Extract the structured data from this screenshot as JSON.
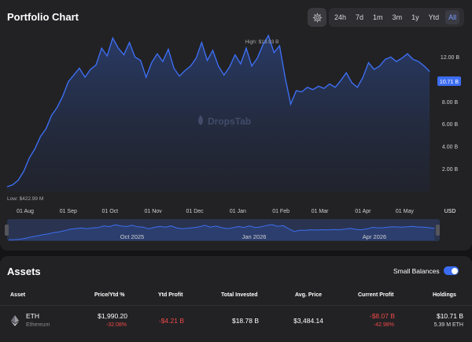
{
  "chart_card": {
    "title": "Portfolio Chart",
    "ranges": [
      {
        "label": "24h",
        "active": false
      },
      {
        "label": "7d",
        "active": false
      },
      {
        "label": "1m",
        "active": false
      },
      {
        "label": "3m",
        "active": false
      },
      {
        "label": "1y",
        "active": false
      },
      {
        "label": "Ytd",
        "active": false
      },
      {
        "label": "All",
        "active": true
      }
    ],
    "watermark": "DropsTab",
    "high_label": "High: $13.93 B",
    "low_label": "Low: $422.99 M",
    "current_badge": "10.71 B",
    "navigator_labels": [
      "Oct 2025",
      "Jan 2026",
      "Apr 2026"
    ],
    "colors": {
      "line": "#3d6ef2",
      "badge": "#3d6ef2",
      "background": "#222224"
    },
    "icons": {
      "settings": "gear-icon"
    }
  },
  "chart_data": {
    "type": "area",
    "title": "",
    "y_unit": "USD",
    "y_ticks": [
      "2.00 B",
      "4.00 B",
      "6.00 B",
      "8.00 B",
      "10.00 B",
      "12.00 B"
    ],
    "ylim": [
      0,
      14
    ],
    "x_ticks": [
      "01 Aug",
      "01 Sep",
      "01 Oct",
      "01 Nov",
      "01 Dec",
      "01 Jan",
      "01 Feb",
      "01 Mar",
      "01 Apr",
      "01 May"
    ],
    "x": [
      "2025-07-19",
      "2025-07-23",
      "2025-07-27",
      "2025-07-31",
      "2025-08-04",
      "2025-08-08",
      "2025-08-12",
      "2025-08-16",
      "2025-08-20",
      "2025-08-24",
      "2025-08-28",
      "2025-09-01",
      "2025-09-05",
      "2025-09-09",
      "2025-09-13",
      "2025-09-17",
      "2025-09-21",
      "2025-09-25",
      "2025-09-29",
      "2025-10-03",
      "2025-10-07",
      "2025-10-11",
      "2025-10-15",
      "2025-10-19",
      "2025-10-23",
      "2025-10-27",
      "2025-10-31",
      "2025-11-04",
      "2025-11-08",
      "2025-11-12",
      "2025-11-16",
      "2025-11-20",
      "2025-11-24",
      "2025-11-28",
      "2025-12-02",
      "2025-12-06",
      "2025-12-10",
      "2025-12-14",
      "2025-12-18",
      "2025-12-22",
      "2025-12-26",
      "2025-12-30",
      "2026-01-03",
      "2026-01-07",
      "2026-01-11",
      "2026-01-15",
      "2026-01-19",
      "2026-01-23",
      "2026-01-27",
      "2026-01-31",
      "2026-02-04",
      "2026-02-08",
      "2026-02-12",
      "2026-02-16",
      "2026-02-20",
      "2026-02-24",
      "2026-02-28",
      "2026-03-04",
      "2026-03-08",
      "2026-03-12",
      "2026-03-16",
      "2026-03-20",
      "2026-03-24",
      "2026-03-28",
      "2026-04-01",
      "2026-04-05",
      "2026-04-09",
      "2026-04-13",
      "2026-04-17",
      "2026-04-21",
      "2026-04-25",
      "2026-04-29",
      "2026-05-03",
      "2026-05-07",
      "2026-05-11",
      "2026-05-15",
      "2026-05-19"
    ],
    "series": [
      {
        "values": [
          0.42,
          0.6,
          1.0,
          1.8,
          3.0,
          3.8,
          4.9,
          5.6,
          6.8,
          7.5,
          8.5,
          9.8,
          10.4,
          11.0,
          10.2,
          10.9,
          11.3,
          12.8,
          12.1,
          13.7,
          12.8,
          12.2,
          13.3,
          12.0,
          11.7,
          10.2,
          11.5,
          12.3,
          11.6,
          12.7,
          11.0,
          10.3,
          10.8,
          11.2,
          11.9,
          13.3,
          11.7,
          12.6,
          11.2,
          10.4,
          11.1,
          12.2,
          11.4,
          12.8,
          11.2,
          11.9,
          13.1,
          13.93,
          12.4,
          13.0,
          10.2,
          7.8,
          9.0,
          8.9,
          9.3,
          9.1,
          9.4,
          9.2,
          9.6,
          9.3,
          9.9,
          10.6,
          9.7,
          9.3,
          10.2,
          11.5,
          10.9,
          11.2,
          11.8,
          12.0,
          11.6,
          11.9,
          12.3,
          11.8,
          11.6,
          11.2,
          10.71
        ]
      }
    ],
    "grid": false,
    "legend": "none"
  },
  "assets_card": {
    "title": "Assets",
    "small_balances_label": "Small Balances",
    "small_balances_on": true,
    "columns": {
      "asset": "Asset",
      "price": "Price/Ytd %",
      "ytd_profit": "Ytd Profit",
      "total_invested": "Total Invested",
      "avg_price": "Avg. Price",
      "current_profit": "Current Profit",
      "holdings": "Holdings"
    },
    "rows": [
      {
        "symbol": "ETH",
        "name": "Ethereum",
        "icon": "ethereum-icon",
        "price": "$1,990.20",
        "ytd_pct": "-32.08%",
        "ytd_profit": "-$4.21 B",
        "total_invested": "$18.78 B",
        "avg_price": "$3,484.14",
        "current_profit": "-$8.07 B",
        "current_profit_pct": "-42.98%",
        "holdings_value": "$10.71 B",
        "holdings_amount": "5.39 M ETH"
      }
    ],
    "colors": {
      "negative": "#f04848",
      "toggle": "#3b6cf2"
    }
  }
}
